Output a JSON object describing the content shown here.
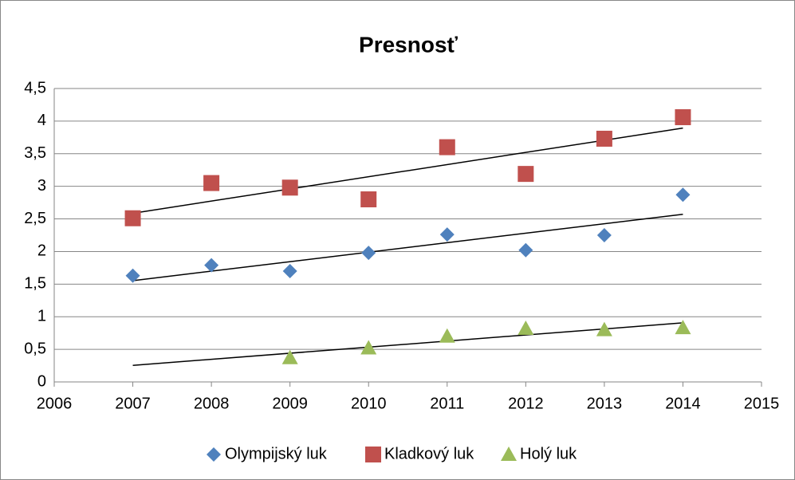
{
  "chart_data": {
    "type": "scatter",
    "title": "Presnosť",
    "x": [
      2007,
      2008,
      2009,
      2010,
      2011,
      2012,
      2013,
      2014
    ],
    "series": [
      {
        "name": "Olympijský luk",
        "color": "#4f81bd",
        "marker": "diamond",
        "values": [
          1.63,
          1.79,
          1.7,
          1.98,
          2.26,
          2.02,
          2.25,
          2.87
        ]
      },
      {
        "name": "Kladkový luk",
        "color": "#c0504d",
        "marker": "square",
        "values": [
          2.51,
          3.05,
          2.98,
          2.8,
          3.6,
          3.19,
          3.73,
          4.06
        ]
      },
      {
        "name": "Holý luk",
        "color": "#9bbb59",
        "marker": "triangle",
        "values": [
          null,
          null,
          0.37,
          0.52,
          0.7,
          0.82,
          0.8,
          0.83
        ]
      }
    ],
    "trendline": true,
    "xlim": [
      2006,
      2015
    ],
    "xticks": [
      2006,
      2007,
      2008,
      2009,
      2010,
      2011,
      2012,
      2013,
      2014,
      2015
    ],
    "ylim": [
      0,
      4.5
    ],
    "yticks": [
      0,
      {
        "value": 0.5,
        "label": "0,5"
      },
      1,
      {
        "value": 1.5,
        "label": "1,5"
      },
      2,
      {
        "value": 2.5,
        "label": "2,5"
      },
      3,
      {
        "value": 3.5,
        "label": "3,5"
      },
      4,
      {
        "value": 4.5,
        "label": "4,5"
      }
    ],
    "grid": true,
    "legend": "bottom"
  }
}
